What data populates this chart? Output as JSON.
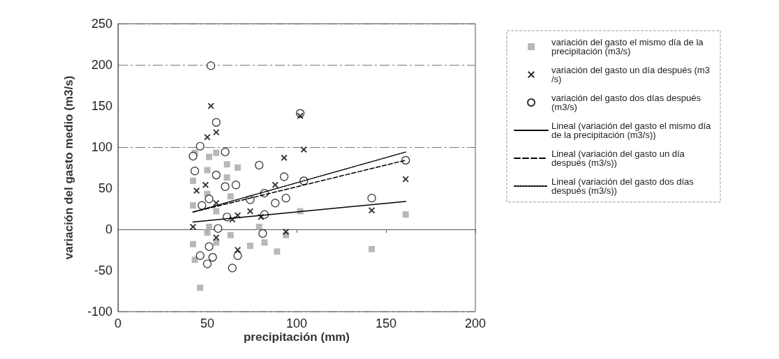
{
  "chart_data": {
    "type": "scatter",
    "xlabel": "precipitación (mm)",
    "ylabel": "variación del gasto medio (m3/s)",
    "xlim": [
      0,
      200
    ],
    "xticks": [
      0,
      50,
      100,
      150,
      200
    ],
    "ylim": [
      -100,
      250
    ],
    "yticks": [
      -100,
      -50,
      0,
      50,
      100,
      150,
      200,
      250
    ],
    "grid": "y",
    "legend": "right",
    "series": [
      {
        "name": "variación del gasto el mismo día de la precipitación (m3/s)",
        "marker": "square",
        "color": "#a6a6a6",
        "x": [
          43,
          51,
          55,
          61,
          67,
          50,
          61,
          42,
          50,
          63,
          55,
          42,
          51,
          63,
          55,
          79,
          82,
          74,
          89,
          43,
          50,
          46,
          42,
          94,
          102,
          161,
          142
        ],
        "values": [
          93,
          88,
          93,
          79,
          75,
          72,
          63,
          59,
          43,
          40,
          22,
          29,
          3,
          -7,
          -16,
          3,
          -16,
          -20,
          -27,
          -37,
          -4,
          -71,
          -18,
          -7,
          22,
          18,
          -24
        ]
      },
      {
        "name": "variación del gasto un día después (m3/s)",
        "marker": "cross",
        "color": "#000000",
        "x": [
          52,
          55,
          50,
          44,
          49,
          55,
          64,
          67,
          74,
          80,
          93,
          88,
          55,
          67,
          42,
          94,
          104,
          142,
          161,
          102
        ],
        "values": [
          150,
          118,
          112,
          47,
          54,
          32,
          12,
          17,
          22,
          15,
          87,
          54,
          -10,
          -25,
          3,
          -3,
          97,
          23,
          61,
          138
        ]
      },
      {
        "name": "variación del gasto dos días después (m3/s)",
        "marker": "circle",
        "color": "#000000",
        "x": [
          52,
          55,
          46,
          42,
          60,
          43,
          55,
          60,
          66,
          79,
          74,
          82,
          93,
          88,
          94,
          82,
          51,
          47,
          56,
          51,
          46,
          50,
          53,
          64,
          67,
          81,
          61,
          102,
          104,
          142,
          161
        ],
        "values": [
          199,
          130,
          101,
          89,
          94,
          71,
          66,
          52,
          54,
          78,
          36,
          44,
          64,
          32,
          38,
          18,
          37,
          29,
          1,
          -21,
          -32,
          -42,
          -34,
          -47,
          -32,
          -5,
          15,
          141,
          59,
          38,
          84
        ]
      },
      {
        "name": "Lineal (variación del gasto el mismo día de la precipitación (m3/s))",
        "type": "line",
        "line_style": "solid",
        "color": "#000000",
        "x": [
          42,
          161
        ],
        "values": [
          9,
          34
        ]
      },
      {
        "name": "Lineal (variación del gasto un día después (m3/s))",
        "type": "line",
        "line_style": "dashed",
        "color": "#000000",
        "x": [
          42,
          161
        ],
        "values": [
          21,
          84
        ]
      },
      {
        "name": "Lineal (variación del gasto dos días después (m3/s))",
        "type": "line",
        "line_style": "dotted",
        "color": "#000000",
        "x": [
          42,
          161
        ],
        "values": [
          21,
          94
        ]
      }
    ]
  }
}
